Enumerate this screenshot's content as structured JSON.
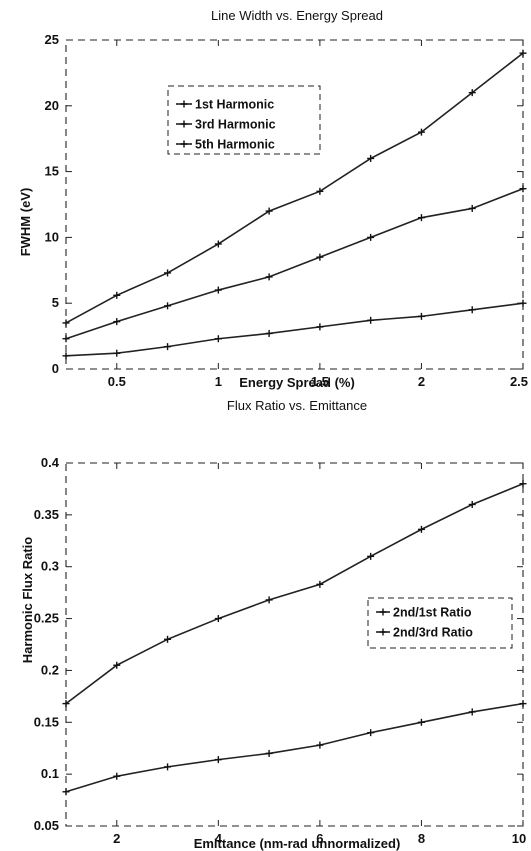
{
  "chart_data": [
    {
      "type": "line",
      "title": "Line Width vs. Energy Spread",
      "xlabel": "Energy Spread (%)",
      "ylabel": "FWHM (eV)",
      "xlim": [
        0.25,
        2.5
      ],
      "ylim": [
        0,
        25
      ],
      "x_ticks": [
        0.5,
        1,
        1.5,
        2,
        2.5
      ],
      "x_tick_labels": [
        "0.5",
        "1",
        "1.5",
        "2",
        "2.5"
      ],
      "y_ticks": [
        0,
        5,
        10,
        15,
        20,
        25
      ],
      "y_tick_labels": [
        "0",
        "5",
        "10",
        "15",
        "20",
        "25"
      ],
      "grid": false,
      "legend_position": "upper-left",
      "x": [
        0.25,
        0.5,
        0.75,
        1.0,
        1.25,
        1.5,
        1.75,
        2.0,
        2.25,
        2.5
      ],
      "series": [
        {
          "name": "1st Harmonic",
          "values": [
            1.0,
            1.2,
            1.7,
            2.3,
            2.7,
            3.2,
            3.7,
            4.0,
            4.5,
            5.0
          ]
        },
        {
          "name": "3rd Harmonic",
          "values": [
            2.3,
            3.6,
            4.8,
            6.0,
            7.0,
            8.5,
            10.0,
            11.5,
            12.2,
            13.7
          ]
        },
        {
          "name": "5th Harmonic",
          "values": [
            3.5,
            5.6,
            7.3,
            9.5,
            12.0,
            13.5,
            16.0,
            18.0,
            21.0,
            24.0
          ]
        }
      ]
    },
    {
      "type": "line",
      "title": "Flux Ratio vs. Emittance",
      "xlabel": "Emittance (nm-rad unnormalized)",
      "ylabel": "Harmonic Flux Ratio",
      "xlim": [
        1,
        10
      ],
      "ylim": [
        0.05,
        0.4
      ],
      "x_ticks": [
        2,
        4,
        6,
        8,
        10
      ],
      "x_tick_labels": [
        "2",
        "4",
        "6",
        "8",
        "10"
      ],
      "y_ticks": [
        0.05,
        0.1,
        0.15,
        0.2,
        0.25,
        0.3,
        0.35,
        0.4
      ],
      "y_tick_labels": [
        "0.05",
        "0.1",
        "0.15",
        "0.2",
        "0.25",
        "0.3",
        "0.35",
        "0.4"
      ],
      "grid": false,
      "legend_position": "right",
      "x": [
        1,
        2,
        3,
        4,
        5,
        6,
        7,
        8,
        9,
        10
      ],
      "series": [
        {
          "name": "2nd/1st Ratio",
          "values": [
            0.168,
            0.205,
            0.23,
            0.25,
            0.268,
            0.283,
            0.31,
            0.336,
            0.36,
            0.38
          ]
        },
        {
          "name": "2nd/3rd Ratio",
          "values": [
            0.083,
            0.098,
            0.107,
            0.114,
            0.12,
            0.128,
            0.14,
            0.15,
            0.16,
            0.168
          ]
        }
      ]
    }
  ]
}
